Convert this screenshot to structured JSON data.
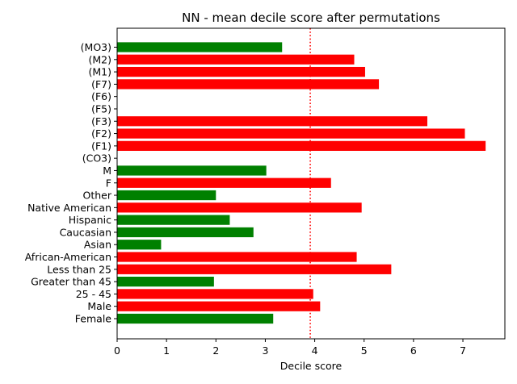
{
  "chart_data": {
    "type": "bar",
    "orientation": "horizontal",
    "title": "NN - mean decile score after permutations",
    "xlabel": "Decile score",
    "ylabel": "",
    "xlim": [
      0,
      7.85
    ],
    "xticks": [
      "0",
      "1",
      "2",
      "3",
      "4",
      "5",
      "6",
      "7"
    ],
    "grid": false,
    "reference_line": {
      "value": 3.91,
      "style": "dotted",
      "color": "#ff0000"
    },
    "colors": {
      "above": "#ff0000",
      "below": "#008000"
    },
    "bars": [
      {
        "label": "Female",
        "value": 3.16,
        "color": "#008000"
      },
      {
        "label": "Male",
        "value": 4.11,
        "color": "#ff0000"
      },
      {
        "label": "25 - 45",
        "value": 3.97,
        "color": "#ff0000"
      },
      {
        "label": "Greater than 45",
        "value": 1.96,
        "color": "#008000"
      },
      {
        "label": "Less than 25",
        "value": 5.55,
        "color": "#ff0000"
      },
      {
        "label": "African-American",
        "value": 4.85,
        "color": "#ff0000"
      },
      {
        "label": "Asian",
        "value": 0.89,
        "color": "#008000"
      },
      {
        "label": "Caucasian",
        "value": 2.76,
        "color": "#008000"
      },
      {
        "label": "Hispanic",
        "value": 2.28,
        "color": "#008000"
      },
      {
        "label": "Native American",
        "value": 4.95,
        "color": "#ff0000"
      },
      {
        "label": "Other",
        "value": 2.0,
        "color": "#008000"
      },
      {
        "label": "F",
        "value": 4.33,
        "color": "#ff0000"
      },
      {
        "label": "M",
        "value": 3.02,
        "color": "#008000"
      },
      {
        "label": "(CO3)",
        "value": 0,
        "color": "#008000"
      },
      {
        "label": "(F1)",
        "value": 7.46,
        "color": "#ff0000"
      },
      {
        "label": "(F2)",
        "value": 7.04,
        "color": "#ff0000"
      },
      {
        "label": "(F3)",
        "value": 6.28,
        "color": "#ff0000"
      },
      {
        "label": "(F5)",
        "value": 0,
        "color": "#008000"
      },
      {
        "label": "(F6)",
        "value": 0,
        "color": "#008000"
      },
      {
        "label": "(F7)",
        "value": 5.3,
        "color": "#ff0000"
      },
      {
        "label": "(M1)",
        "value": 5.02,
        "color": "#ff0000"
      },
      {
        "label": "(M2)",
        "value": 4.8,
        "color": "#ff0000"
      },
      {
        "label": "(MO3)",
        "value": 3.34,
        "color": "#008000"
      }
    ]
  }
}
